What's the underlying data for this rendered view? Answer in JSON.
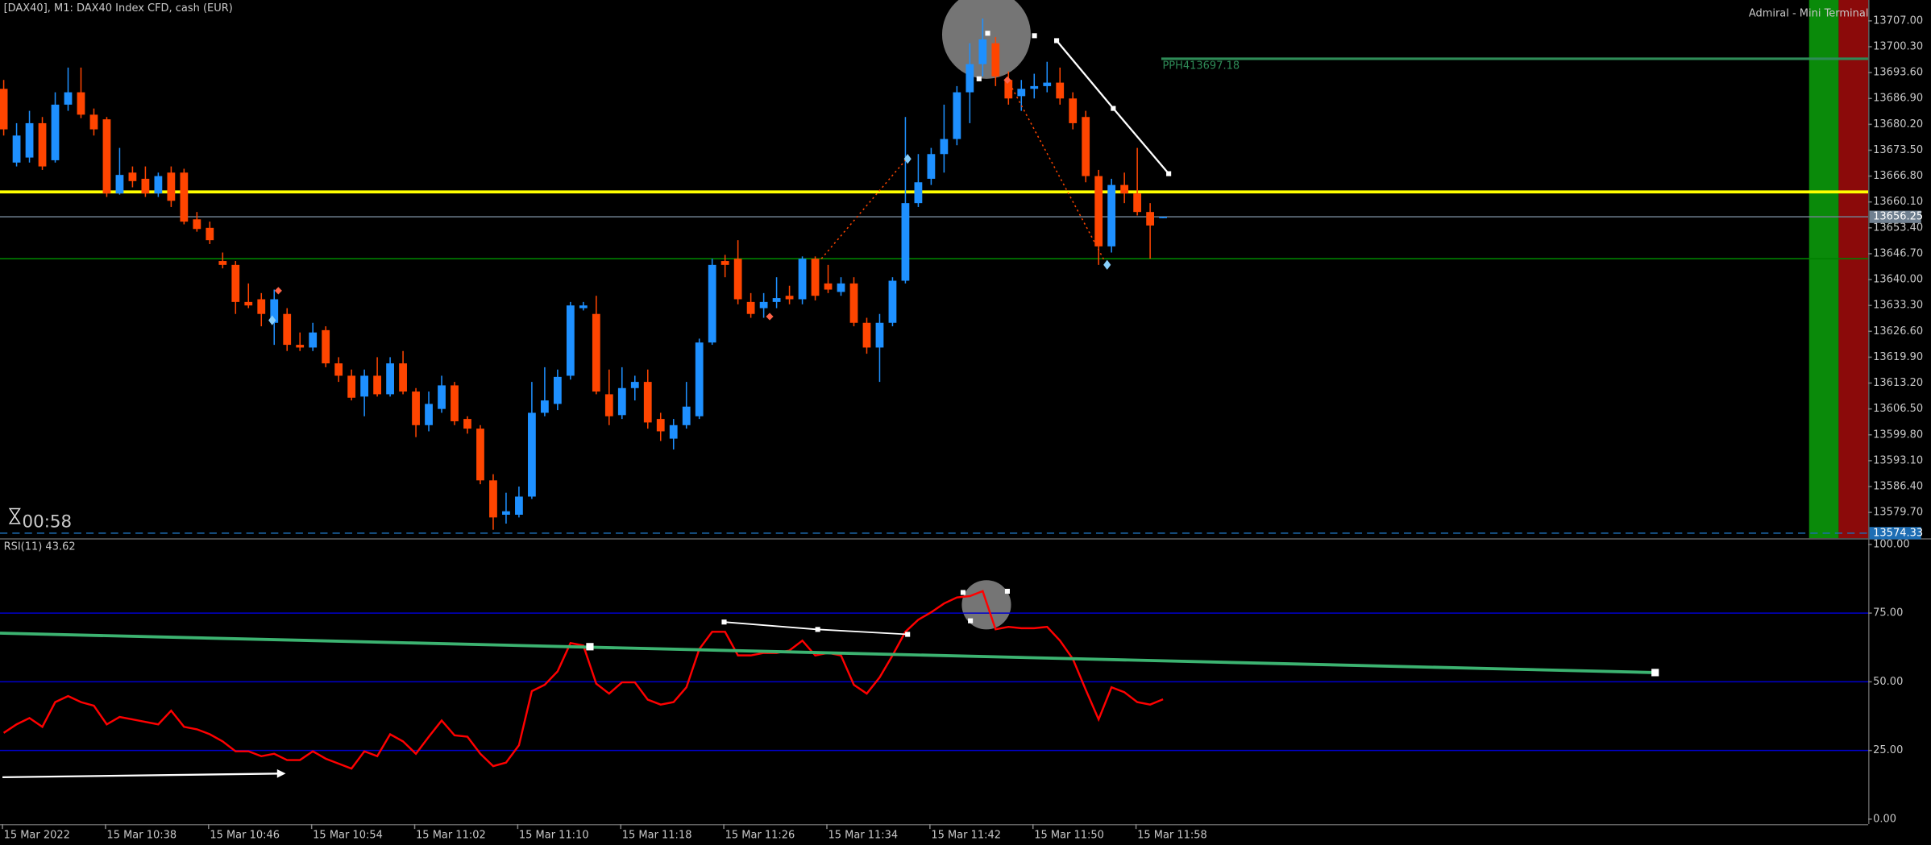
{
  "chart_data": [
    {
      "type": "candlestick",
      "title": "[DAX40], M1:  DAX40 Index CFD, cash (EUR)",
      "panel_title": "Admiral - Mini Terminal",
      "timer": "00:58",
      "annotation": "PPH413697.18",
      "categories": [
        "15 Mar 2022",
        null,
        null,
        null,
        null,
        null,
        null,
        null,
        "15 Mar 10:38",
        null,
        null,
        null,
        null,
        null,
        null,
        null,
        "15 Mar 10:46",
        null,
        null,
        null,
        null,
        null,
        null,
        null,
        "15 Mar 10:54",
        null,
        null,
        null,
        null,
        null,
        null,
        null,
        "15 Mar 11:02",
        null,
        null,
        null,
        null,
        null,
        null,
        null,
        "15 Mar 11:10",
        null,
        null,
        null,
        null,
        null,
        null,
        null,
        "15 Mar 11:18",
        null,
        null,
        null,
        null,
        null,
        null,
        null,
        "15 Mar 11:26",
        null,
        null,
        null,
        null,
        null,
        null,
        null,
        "15 Mar 11:34",
        null,
        null,
        null,
        null,
        null,
        null,
        null,
        "15 Mar 11:42",
        null,
        null,
        null,
        null,
        null,
        null,
        null,
        "15 Mar 11:50",
        null,
        null,
        null,
        null,
        null,
        null,
        null,
        "15 Mar 11:58",
        null,
        null
      ],
      "open": [
        13689.4,
        13670.3,
        13671.6,
        13680.5,
        13670.9,
        13685.3,
        13688.5,
        13682.7,
        13681.5,
        13662.3,
        13667.7,
        13666.1,
        13662.3,
        13667.7,
        13667.7,
        13655.6,
        13653.4,
        13644.8,
        13643.8,
        13634.2,
        13634.9,
        13628.8,
        13631.1,
        13623.1,
        13622.4,
        13626.9,
        13618.3,
        13615.1,
        13609.7,
        13615.1,
        13610.3,
        13618.3,
        13611.0,
        13602.3,
        13606.5,
        13612.6,
        13603.9,
        13601.4,
        13588.0,
        13579.1,
        13579.1,
        13583.8,
        13605.5,
        13607.8,
        13615.1,
        13632.6,
        13631.1,
        13610.3,
        13604.9,
        13611.9,
        13613.5,
        13603.9,
        13598.8,
        13602.3,
        13604.6,
        13623.7,
        13644.8,
        13645.4,
        13634.2,
        13632.6,
        13634.2,
        13635.8,
        13634.9,
        13645.4,
        13639.0,
        13636.8,
        13639.0,
        13628.8,
        13622.4,
        13628.8,
        13639.7,
        13659.8,
        13666.1,
        13672.5,
        13676.4,
        13688.5,
        13695.8,
        13701.2,
        13691.7,
        13687.5,
        13689.4,
        13690.1,
        13691.0,
        13686.9,
        13682.1,
        13666.8,
        13648.6,
        13664.5,
        13662.3,
        13657.5,
        13655.9
      ],
      "high": [
        13691.7,
        13680.5,
        13683.7,
        13682.1,
        13688.5,
        13694.9,
        13694.9,
        13684.3,
        13682.1,
        13674.1,
        13669.3,
        13669.3,
        13667.7,
        13669.3,
        13668.7,
        13657.5,
        13655.0,
        13647.0,
        13644.8,
        13639.0,
        13636.5,
        13637.4,
        13632.6,
        13626.3,
        13628.8,
        13627.9,
        13619.9,
        13616.7,
        13616.7,
        13619.9,
        13619.9,
        13621.5,
        13611.9,
        13611.0,
        13615.1,
        13613.5,
        13604.6,
        13602.3,
        13589.6,
        13584.8,
        13586.4,
        13613.5,
        13617.3,
        13616.7,
        13634.2,
        13634.2,
        13635.8,
        13616.7,
        13617.3,
        13615.1,
        13616.7,
        13605.5,
        13603.9,
        13613.5,
        13624.7,
        13645.4,
        13646.4,
        13650.2,
        13636.5,
        13636.5,
        13640.6,
        13638.4,
        13646.0,
        13646.0,
        13643.8,
        13640.6,
        13640.6,
        13630.1,
        13631.1,
        13640.6,
        13682.1,
        13672.5,
        13674.1,
        13685.3,
        13690.1,
        13701.2,
        13707.6,
        13702.8,
        13693.9,
        13691.7,
        13693.3,
        13696.4,
        13694.9,
        13688.5,
        13683.7,
        13668.4,
        13666.1,
        13667.7,
        13674.1,
        13659.8,
        13656.3
      ],
      "low": [
        13677.3,
        13669.3,
        13670.3,
        13668.4,
        13670.3,
        13683.7,
        13681.8,
        13677.3,
        13661.4,
        13662.0,
        13663.9,
        13661.4,
        13661.4,
        13658.8,
        13654.3,
        13652.4,
        13649.2,
        13642.9,
        13631.1,
        13632.6,
        13627.9,
        13623.1,
        13621.5,
        13621.5,
        13621.5,
        13617.3,
        13613.5,
        13608.7,
        13604.6,
        13609.7,
        13609.7,
        13610.3,
        13599.2,
        13600.7,
        13605.5,
        13602.3,
        13600.1,
        13587.0,
        13575.2,
        13576.8,
        13578.4,
        13583.2,
        13604.6,
        13606.2,
        13614.1,
        13632.0,
        13610.3,
        13602.3,
        13603.9,
        13608.7,
        13601.4,
        13598.2,
        13596.0,
        13601.4,
        13603.9,
        13623.1,
        13640.6,
        13633.6,
        13630.1,
        13630.1,
        13632.6,
        13633.6,
        13633.6,
        13634.6,
        13636.5,
        13635.8,
        13627.9,
        13620.8,
        13613.5,
        13627.9,
        13639.0,
        13658.8,
        13664.5,
        13667.7,
        13674.8,
        13680.5,
        13692.6,
        13690.1,
        13685.3,
        13683.7,
        13686.9,
        13688.5,
        13685.3,
        13678.9,
        13665.2,
        13643.8,
        13647.0,
        13659.8,
        13656.6,
        13645.4,
        13655.9
      ],
      "close": [
        13678.9,
        13677.3,
        13680.5,
        13669.3,
        13685.3,
        13688.5,
        13682.7,
        13678.9,
        13662.3,
        13667.1,
        13665.5,
        13662.3,
        13666.8,
        13660.4,
        13655.0,
        13653.1,
        13650.2,
        13643.8,
        13634.2,
        13633.3,
        13631.1,
        13634.9,
        13623.1,
        13622.4,
        13626.3,
        13618.3,
        13615.1,
        13609.4,
        13615.1,
        13610.3,
        13618.3,
        13611.0,
        13602.3,
        13607.8,
        13612.6,
        13603.3,
        13601.4,
        13588.0,
        13578.4,
        13580.0,
        13583.8,
        13605.5,
        13608.7,
        13614.8,
        13633.3,
        13633.3,
        13611.0,
        13604.6,
        13611.9,
        13613.5,
        13603.0,
        13600.7,
        13602.3,
        13607.1,
        13623.7,
        13643.8,
        13643.8,
        13634.9,
        13631.1,
        13634.2,
        13635.2,
        13634.9,
        13645.4,
        13635.8,
        13637.4,
        13639.0,
        13628.8,
        13622.4,
        13628.8,
        13639.7,
        13659.8,
        13665.2,
        13672.5,
        13676.4,
        13688.5,
        13695.8,
        13702.2,
        13692.6,
        13686.9,
        13689.4,
        13690.1,
        13691.0,
        13686.9,
        13680.5,
        13666.8,
        13648.6,
        13664.5,
        13662.3,
        13657.5,
        13654.0,
        13656.25
      ],
      "up_color": "#1e90ff",
      "down_color": "#ff4500",
      "ylim": [
        13573.0,
        13712.4
      ],
      "yticks": [
        {
          "value": 13707.0,
          "label": "13707.00"
        },
        {
          "value": 13700.3,
          "label": "13700.30"
        },
        {
          "value": 13693.6,
          "label": "13693.60"
        },
        {
          "value": 13686.9,
          "label": "13686.90"
        },
        {
          "value": 13680.2,
          "label": "13680.20"
        },
        {
          "value": 13673.5,
          "label": "13673.50"
        },
        {
          "value": 13666.8,
          "label": "13666.80"
        },
        {
          "value": 13660.1,
          "label": "13660.10"
        },
        {
          "value": 13653.4,
          "label": "13653.40"
        },
        {
          "value": 13646.7,
          "label": "13646.70"
        },
        {
          "value": 13640.0,
          "label": "13640.00"
        },
        {
          "value": 13633.3,
          "label": "13633.30"
        },
        {
          "value": 13626.6,
          "label": "13626.60"
        },
        {
          "value": 13619.9,
          "label": "13619.90"
        },
        {
          "value": 13613.2,
          "label": "13613.20"
        },
        {
          "value": 13606.5,
          "label": "13606.50"
        },
        {
          "value": 13599.8,
          "label": "13599.80"
        },
        {
          "value": 13593.1,
          "label": "13593.10"
        },
        {
          "value": 13586.4,
          "label": "13586.40"
        },
        {
          "value": 13579.7,
          "label": "13579.70"
        }
      ],
      "levels": [
        {
          "value": 13662.7,
          "color": "#ffff00"
        },
        {
          "value": 13645.4,
          "color": "#008000"
        }
      ],
      "pph_level": 13697.18,
      "pph_color": "#2e8b57",
      "bid": 13656.25,
      "bid_color": "#708090",
      "low_mark": 13574.33,
      "low_color": "#1e6eb4"
    },
    {
      "type": "line",
      "title": "RSI(11) 43.62",
      "values": [
        31.4,
        34.5,
        36.8,
        33.6,
        42.6,
        44.8,
        42.6,
        41.3,
        34.5,
        37.2,
        36.3,
        35.4,
        34.5,
        39.5,
        33.6,
        32.7,
        30.9,
        28.3,
        24.7,
        24.7,
        22.9,
        23.8,
        21.5,
        21.5,
        24.7,
        22.0,
        20.2,
        18.4,
        24.7,
        22.9,
        30.9,
        28.3,
        23.8,
        30.0,
        35.9,
        30.5,
        30.0,
        23.8,
        19.3,
        20.6,
        26.9,
        46.6,
        48.9,
        53.8,
        64.1,
        63.2,
        49.3,
        45.7,
        49.8,
        49.8,
        43.5,
        41.7,
        42.6,
        48.0,
        61.9,
        68.2,
        68.2,
        59.6,
        59.6,
        60.5,
        60.5,
        61.4,
        65.0,
        59.6,
        60.5,
        59.6,
        48.9,
        45.7,
        51.6,
        59.6,
        68.2,
        72.6,
        75.3,
        78.5,
        80.7,
        81.2,
        83.0,
        69.1,
        70.0,
        69.5,
        69.5,
        70.0,
        65.0,
        58.3,
        47.1,
        36.3,
        48.0,
        46.2,
        42.6,
        41.7,
        43.62
      ],
      "color": "#ff0000",
      "ylim": [
        0,
        100
      ],
      "yticks": [
        {
          "value": 100,
          "label": "100.00"
        },
        {
          "value": 75,
          "label": "75.00"
        },
        {
          "value": 50,
          "label": "50.00"
        },
        {
          "value": 25,
          "label": "25.00"
        },
        {
          "value": 0,
          "label": "0.00"
        }
      ],
      "levels": [
        75,
        50,
        25
      ],
      "level_color": "#0000cd"
    }
  ]
}
